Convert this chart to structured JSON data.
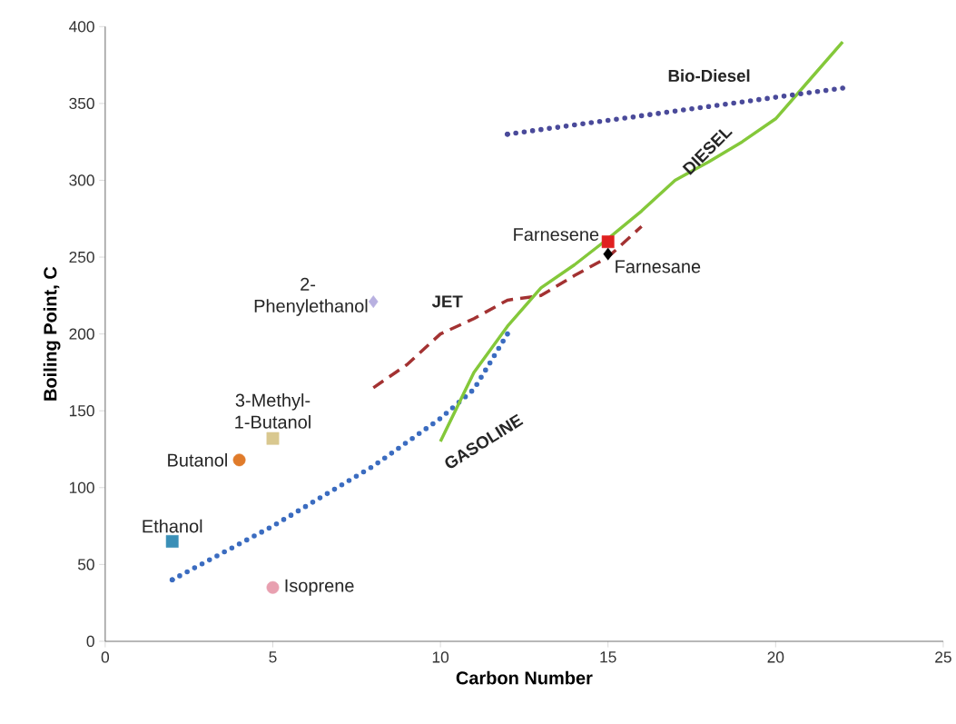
{
  "chart_data": {
    "type": "line",
    "xlabel": "Carbon Number",
    "ylabel": "Boiling Point, C",
    "xlim": [
      0,
      25
    ],
    "xticks": [
      0,
      5,
      10,
      15,
      20,
      25
    ],
    "ylim": [
      0,
      400
    ],
    "yticks": [
      0,
      50,
      100,
      150,
      200,
      250,
      300,
      350,
      400
    ],
    "grid": false,
    "legend": false,
    "series": [
      {
        "name": "GASOLINE",
        "type": "line",
        "line_style": "dotted",
        "marker": "none",
        "color": "#3b6cc0",
        "x": [
          2,
          5,
          8,
          10,
          11,
          12
        ],
        "values": [
          40,
          75,
          114,
          145,
          164,
          200
        ]
      },
      {
        "name": "JET",
        "type": "line",
        "line_style": "dashed",
        "marker": "none",
        "color": "#a33232",
        "x": [
          8,
          9,
          10,
          11,
          12,
          13,
          14,
          15,
          16
        ],
        "values": [
          165,
          180,
          200,
          210,
          222,
          225,
          238,
          250,
          270
        ]
      },
      {
        "name": "DIESEL",
        "type": "line",
        "line_style": "solid",
        "marker": "none",
        "color": "#84c83a",
        "x": [
          10,
          11,
          12,
          13,
          14,
          15,
          16,
          17,
          18,
          19,
          20,
          21,
          22
        ],
        "values": [
          130,
          175,
          205,
          230,
          245,
          262,
          280,
          300,
          312,
          325,
          340,
          365,
          390
        ]
      },
      {
        "name": "Bio-Diesel",
        "type": "line",
        "line_style": "dotted",
        "marker": "none",
        "color": "#4a4a9a",
        "x": [
          12,
          22
        ],
        "values": [
          330,
          360
        ]
      },
      {
        "name": "Ethanol",
        "type": "scatter",
        "marker": "square",
        "color": "#3a8fb7",
        "x": [
          2
        ],
        "values": [
          65
        ]
      },
      {
        "name": "Butanol",
        "type": "scatter",
        "marker": "circle",
        "color": "#e07b2a",
        "x": [
          4
        ],
        "values": [
          118
        ]
      },
      {
        "name": "3-Methyl-1-Butanol",
        "type": "scatter",
        "marker": "square",
        "color": "#d9c88f",
        "x": [
          5
        ],
        "values": [
          132
        ]
      },
      {
        "name": "Isoprene",
        "type": "scatter",
        "marker": "circle",
        "color": "#e8a0b0",
        "x": [
          5
        ],
        "values": [
          35
        ]
      },
      {
        "name": "2-Phenylethanol",
        "type": "scatter",
        "marker": "diamond",
        "color": "#b8b0e0",
        "x": [
          8
        ],
        "values": [
          221
        ]
      },
      {
        "name": "Farnesene",
        "type": "scatter",
        "marker": "square",
        "color": "#e02020",
        "x": [
          15
        ],
        "values": [
          260
        ]
      },
      {
        "name": "Farnesane",
        "type": "scatter",
        "marker": "diamond",
        "color": "#000000",
        "x": [
          15
        ],
        "values": [
          252
        ]
      }
    ]
  }
}
